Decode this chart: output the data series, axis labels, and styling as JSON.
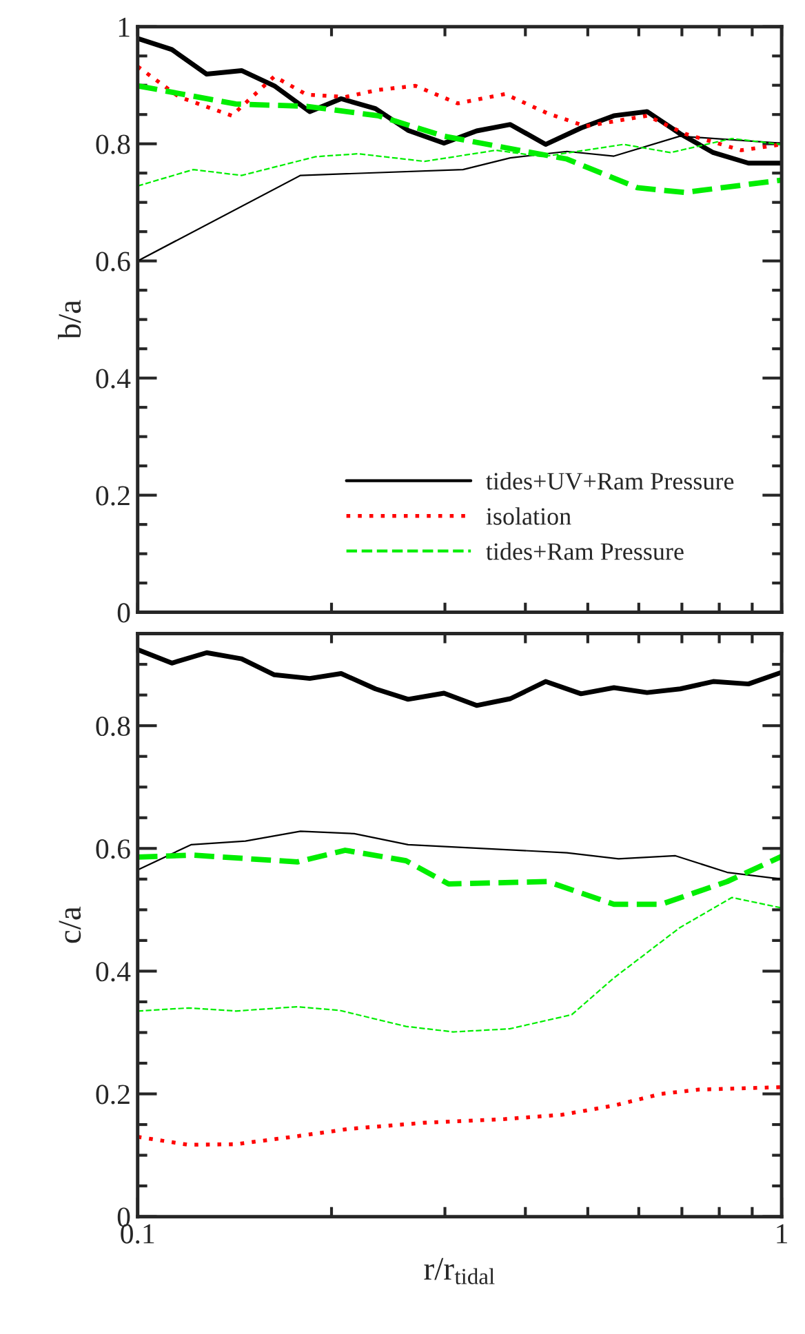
{
  "chart_data": [
    {
      "type": "line",
      "ylabel": "b/a",
      "log": "x",
      "xlim": [
        0.1,
        1
      ],
      "ylim": [
        0,
        1
      ],
      "xticks": [
        {
          "value": 0.1,
          "label": null
        },
        {
          "value": 0.2,
          "label": null
        },
        {
          "value": 0.3,
          "label": null
        },
        {
          "value": 0.4,
          "label": null
        },
        {
          "value": 0.5,
          "label": null
        },
        {
          "value": 0.6,
          "label": null
        },
        {
          "value": 0.7,
          "label": null
        },
        {
          "value": 0.8,
          "label": null
        },
        {
          "value": 0.9,
          "label": null
        },
        {
          "value": 1,
          "label": null
        }
      ],
      "yticks": [
        0,
        {
          "value": 0.05,
          "label": null
        },
        {
          "value": 0.1,
          "label": null
        },
        {
          "value": 0.15,
          "label": null
        },
        {
          "value": 0.2,
          "label": "0.2"
        },
        {
          "value": 0.25,
          "label": null
        },
        {
          "value": 0.3,
          "label": null
        },
        {
          "value": 0.35,
          "label": null
        },
        {
          "value": 0.4,
          "label": "0.4"
        },
        {
          "value": 0.45,
          "label": null
        },
        {
          "value": 0.5,
          "label": null
        },
        {
          "value": 0.55,
          "label": null
        },
        {
          "value": 0.6,
          "label": "0.6"
        },
        {
          "value": 0.65,
          "label": null
        },
        {
          "value": 0.7,
          "label": null
        },
        {
          "value": 0.75,
          "label": null
        },
        {
          "value": 0.8,
          "label": "0.8"
        },
        {
          "value": 0.85,
          "label": null
        },
        {
          "value": 0.9,
          "label": null
        },
        {
          "value": 0.95,
          "label": null
        },
        1
      ],
      "tick_labels": "y",
      "legend": "bottom right",
      "grid": false,
      "series": [
        {
          "color": "#000000",
          "line_style": "solid",
          "x": [
            0.1,
            0.113,
            0.128,
            0.145,
            0.163,
            0.185,
            0.207,
            0.234,
            0.263,
            0.299,
            0.336,
            0.379,
            0.43,
            0.488,
            0.549,
            0.618,
            0.696,
            0.783,
            0.888,
            1
          ],
          "values": [
            0.98,
            0.961,
            0.919,
            0.925,
            0.899,
            0.855,
            0.877,
            0.86,
            0.823,
            0.801,
            0.822,
            0.833,
            0.799,
            0.827,
            0.848,
            0.855,
            0.817,
            0.785,
            0.767,
            0.767
          ]
        },
        {
          "name": "tides+UV+Ram Pressure",
          "color": "#000000",
          "line_style": "solid",
          "x": [
            0.1,
            0.179,
            0.32,
            0.379,
            0.464,
            0.549,
            0.695,
            1
          ],
          "values": [
            0.6,
            0.746,
            0.756,
            0.776,
            0.787,
            0.779,
            0.813,
            0.801
          ]
        },
        {
          "name": "isolation",
          "color": "#ff0000",
          "line_style": "dotted",
          "x": [
            0.1,
            0.116,
            0.14,
            0.163,
            0.183,
            0.21,
            0.236,
            0.27,
            0.314,
            0.372,
            0.433,
            0.496,
            0.618,
            0.708,
            0.866,
            1
          ],
          "values": [
            0.932,
            0.88,
            0.848,
            0.915,
            0.884,
            0.88,
            0.892,
            0.899,
            0.869,
            0.885,
            0.852,
            0.83,
            0.848,
            0.817,
            0.789,
            0.799
          ]
        },
        {
          "color": "#00ee00",
          "line_style": "dashed",
          "x": [
            0.1,
            0.142,
            0.183,
            0.236,
            0.299,
            0.391,
            0.464,
            0.597,
            0.708,
            1
          ],
          "values": [
            0.899,
            0.868,
            0.864,
            0.848,
            0.813,
            0.789,
            0.774,
            0.725,
            0.717,
            0.738
          ]
        },
        {
          "name": "tides+Ram Pressure",
          "color": "#00ee00",
          "line_style": "dashed",
          "x": [
            0.1,
            0.122,
            0.145,
            0.189,
            0.22,
            0.279,
            0.36,
            0.426,
            0.568,
            0.672,
            0.837,
            1
          ],
          "values": [
            0.728,
            0.756,
            0.746,
            0.778,
            0.783,
            0.77,
            0.789,
            0.778,
            0.799,
            0.785,
            0.809,
            0.799
          ]
        }
      ]
    },
    {
      "type": "line",
      "ylabel": "c/a",
      "xlabel": "r/r$_{tidal}$",
      "log": "x",
      "xlim": [
        0.1,
        1
      ],
      "ylim": [
        0,
        0.95
      ],
      "xticks": [
        0.1,
        {
          "value": 0.2,
          "label": null
        },
        {
          "value": 0.3,
          "label": null
        },
        {
          "value": 0.4,
          "label": null
        },
        {
          "value": 0.5,
          "label": null
        },
        {
          "value": 0.6,
          "label": null
        },
        {
          "value": 0.7,
          "label": null
        },
        {
          "value": 0.8,
          "label": null
        },
        {
          "value": 0.9,
          "label": null
        },
        1
      ],
      "yticks": [
        0,
        {
          "value": 0.05,
          "label": null
        },
        {
          "value": 0.1,
          "label": null
        },
        {
          "value": 0.15,
          "label": null
        },
        {
          "value": 0.2,
          "label": "0.2"
        },
        {
          "value": 0.25,
          "label": null
        },
        {
          "value": 0.3,
          "label": null
        },
        {
          "value": 0.35,
          "label": null
        },
        {
          "value": 0.4,
          "label": "0.4"
        },
        {
          "value": 0.45,
          "label": null
        },
        {
          "value": 0.5,
          "label": null
        },
        {
          "value": 0.55,
          "label": null
        },
        {
          "value": 0.6,
          "label": "0.6"
        },
        {
          "value": 0.65,
          "label": null
        },
        {
          "value": 0.7,
          "label": null
        },
        {
          "value": 0.75,
          "label": null
        },
        {
          "value": 0.8,
          "label": "0.8"
        },
        {
          "value": 0.85,
          "label": null
        },
        {
          "value": 0.9,
          "label": null
        }
      ],
      "grid": false,
      "series": [
        {
          "color": "#000000",
          "line_style": "solid",
          "x": [
            0.1,
            0.113,
            0.128,
            0.145,
            0.163,
            0.185,
            0.207,
            0.234,
            0.263,
            0.299,
            0.336,
            0.379,
            0.43,
            0.488,
            0.549,
            0.618,
            0.696,
            0.783,
            0.888,
            1
          ],
          "values": [
            0.924,
            0.902,
            0.919,
            0.909,
            0.883,
            0.877,
            0.885,
            0.86,
            0.843,
            0.853,
            0.833,
            0.844,
            0.872,
            0.852,
            0.862,
            0.854,
            0.86,
            0.872,
            0.868,
            0.887
          ]
        },
        {
          "color": "#000000",
          "line_style": "solid",
          "x": [
            0.1,
            0.121,
            0.147,
            0.179,
            0.217,
            0.263,
            0.464,
            0.558,
            0.684,
            0.823,
            1
          ],
          "values": [
            0.565,
            0.606,
            0.612,
            0.628,
            0.624,
            0.606,
            0.593,
            0.583,
            0.588,
            0.561,
            0.55
          ]
        },
        {
          "color": "#ff0000",
          "line_style": "dotted",
          "x": [
            0.1,
            0.12,
            0.142,
            0.174,
            0.213,
            0.279,
            0.372,
            0.456,
            0.549,
            0.65,
            0.744,
            1
          ],
          "values": [
            0.13,
            0.117,
            0.118,
            0.13,
            0.143,
            0.153,
            0.159,
            0.166,
            0.181,
            0.2,
            0.207,
            0.211
          ]
        },
        {
          "color": "#00ee00",
          "line_style": "dashed",
          "x": [
            0.1,
            0.122,
            0.177,
            0.21,
            0.261,
            0.304,
            0.433,
            0.549,
            0.65,
            0.823,
            1
          ],
          "values": [
            0.586,
            0.589,
            0.578,
            0.597,
            0.58,
            0.542,
            0.546,
            0.509,
            0.509,
            0.546,
            0.587
          ]
        },
        {
          "color": "#00ee00",
          "line_style": "dashed",
          "x": [
            0.1,
            0.12,
            0.142,
            0.177,
            0.206,
            0.261,
            0.309,
            0.378,
            0.472,
            0.549,
            0.695,
            0.837,
            1
          ],
          "values": [
            0.335,
            0.34,
            0.335,
            0.342,
            0.336,
            0.31,
            0.301,
            0.306,
            0.329,
            0.389,
            0.471,
            0.52,
            0.503
          ]
        }
      ]
    }
  ]
}
